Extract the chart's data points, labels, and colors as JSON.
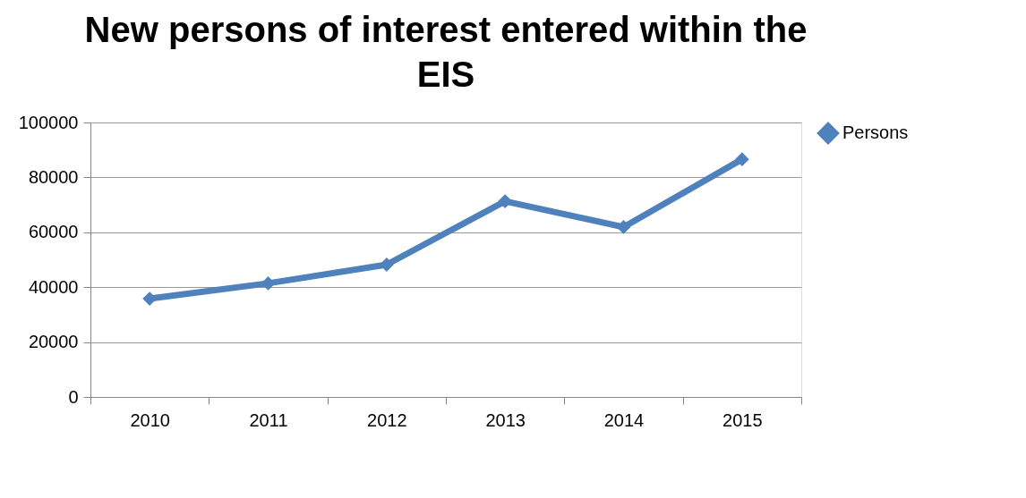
{
  "chart_data": {
    "type": "line",
    "title": "New persons of interest entered within the EIS",
    "categories": [
      "2010",
      "2011",
      "2012",
      "2013",
      "2014",
      "2015"
    ],
    "series": [
      {
        "name": "Persons",
        "color": "#4f81bd",
        "values": [
          35800,
          41400,
          48200,
          71300,
          61900,
          86600
        ]
      }
    ],
    "ylim": [
      0,
      100000
    ],
    "yticks": [
      0,
      20000,
      40000,
      60000,
      80000,
      100000
    ],
    "grid": "y",
    "legend": "right",
    "marker": "diamond",
    "line_style": "solid"
  }
}
